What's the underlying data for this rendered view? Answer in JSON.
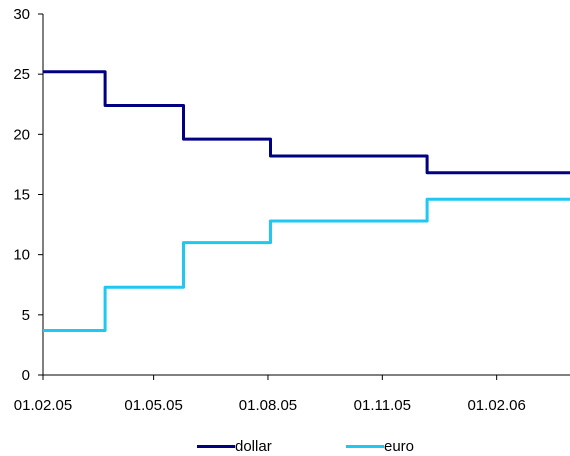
{
  "chart_data": {
    "type": "line",
    "step": true,
    "x_ticks": [
      "01.02.05",
      "01.05.05",
      "01.08.05",
      "01.11.05",
      "01.02.06"
    ],
    "x_range": [
      "01.02.05",
      "01.04.06"
    ],
    "ylim": [
      0,
      30
    ],
    "y_ticks": [
      0,
      5,
      10,
      15,
      20,
      25,
      30
    ],
    "grid": false,
    "legend_position": "bottom",
    "series": [
      {
        "name": "dollar",
        "color": "#000080",
        "points": [
          {
            "x": "01.02.05",
            "y": 25.2
          },
          {
            "x": "23.03.05",
            "y": 25.2
          },
          {
            "x": "23.03.05",
            "y": 22.4
          },
          {
            "x": "25.05.05",
            "y": 22.4
          },
          {
            "x": "25.05.05",
            "y": 19.6
          },
          {
            "x": "03.08.05",
            "y": 19.6
          },
          {
            "x": "03.08.05",
            "y": 18.2
          },
          {
            "x": "07.12.05",
            "y": 18.2
          },
          {
            "x": "07.12.05",
            "y": 16.8
          },
          {
            "x": "01.04.06",
            "y": 16.8
          }
        ]
      },
      {
        "name": "euro",
        "color": "#1ec8f0",
        "points": [
          {
            "x": "01.02.05",
            "y": 3.7
          },
          {
            "x": "23.03.05",
            "y": 3.7
          },
          {
            "x": "23.03.05",
            "y": 7.3
          },
          {
            "x": "25.05.05",
            "y": 7.3
          },
          {
            "x": "25.05.05",
            "y": 11.0
          },
          {
            "x": "03.08.05",
            "y": 11.0
          },
          {
            "x": "03.08.05",
            "y": 12.8
          },
          {
            "x": "07.12.05",
            "y": 12.8
          },
          {
            "x": "07.12.05",
            "y": 14.6
          },
          {
            "x": "01.04.06",
            "y": 14.6
          }
        ]
      }
    ]
  }
}
